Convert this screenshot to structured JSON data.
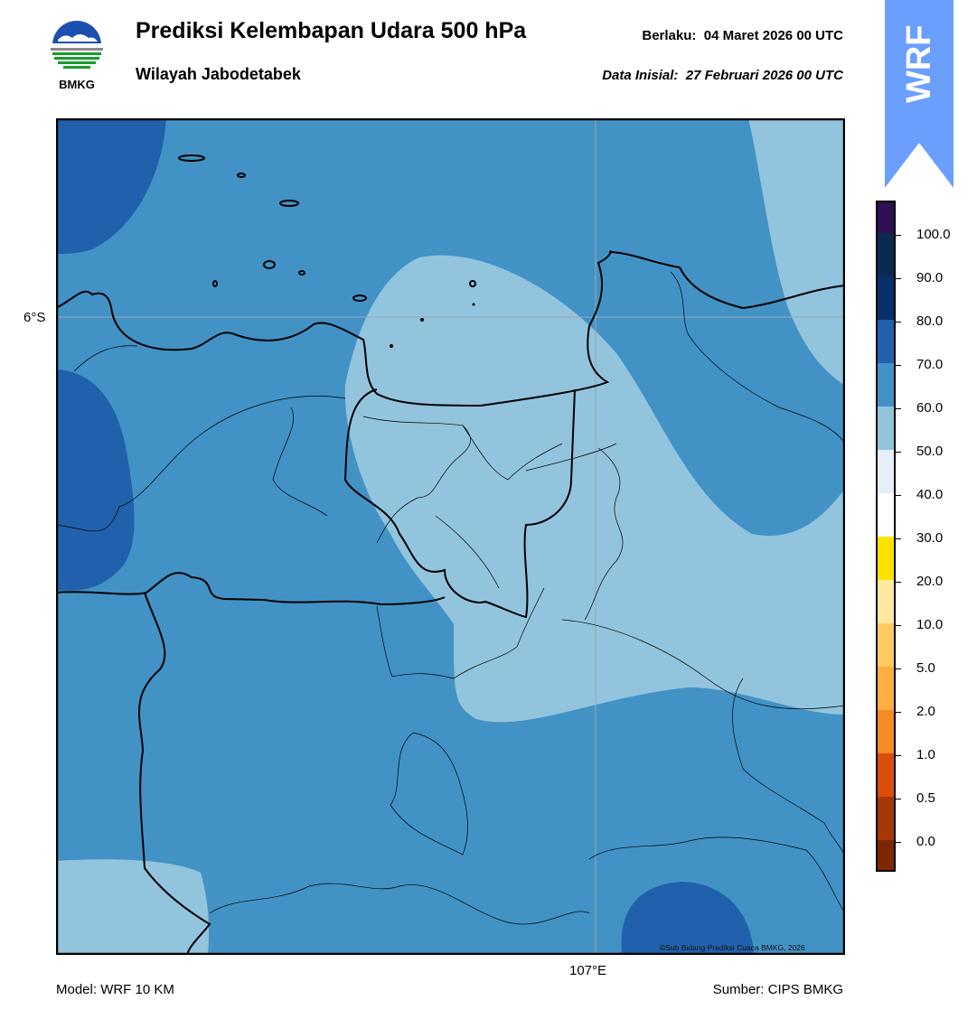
{
  "header": {
    "title": "Prediksi Kelembapan Udara 500 hPa",
    "subtitle": "Wilayah Jabodetabek",
    "valid_label": "Berlaku:",
    "valid_time": "04 Maret 2026 00 UTC",
    "init_label": "Data Inisial:",
    "init_time": "27 Februari 2026 00 UTC"
  },
  "logo": {
    "text": "BMKG",
    "icon": "bmkg-logo-icon"
  },
  "badge": {
    "text": "WRF",
    "color": "#6b9fff"
  },
  "map": {
    "lat_label": "6°S",
    "lon_label": "107°E",
    "copyright": "©Sub Bidang Prediksi Cuaca BMKG, 2026"
  },
  "colorbar": {
    "labels": [
      "100.0",
      "90.0",
      "80.0",
      "70.0",
      "60.0",
      "50.0",
      "40.0",
      "30.0",
      "20.0",
      "10.0",
      "5.0",
      "2.0",
      "1.0",
      "0.5",
      "0.0"
    ],
    "colors_top_to_bottom": [
      "#2d0f55",
      "#0b2a52",
      "#08306b",
      "#2161ac",
      "#4292c6",
      "#92c4de",
      "#e6eff7",
      "#ffffff",
      "#ffe200",
      "#ffe9a0",
      "#ffca60",
      "#ffaf3f",
      "#f58a26",
      "#d94f0a",
      "#a83707",
      "#7f2704",
      "#4e1a04",
      "#b50f0f",
      "#e0332a"
    ],
    "shading": {
      "light": "#92c4de",
      "medium": "#4292c6",
      "dark": "#2161ac"
    }
  },
  "footer": {
    "model": "Model: WRF 10 KM",
    "source": "Sumber: CIPS BMKG"
  }
}
